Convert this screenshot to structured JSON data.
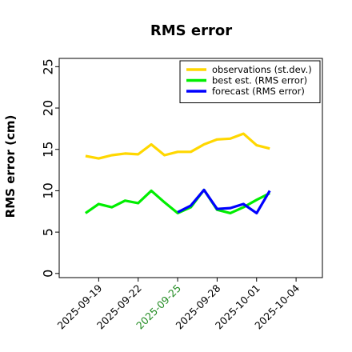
{
  "chart_data": {
    "type": "line",
    "title": "RMS error",
    "xlabel": "",
    "ylabel": "RMS error (cm)",
    "ylim": [
      -0.5,
      26
    ],
    "yticks": [
      0,
      5,
      10,
      15,
      20,
      25
    ],
    "xlim": [
      "2025-09-16",
      "2025-10-06"
    ],
    "xticks": [
      {
        "date": "2025-09-19",
        "label": "2025-09-19",
        "color": "#000000"
      },
      {
        "date": "2025-09-22",
        "label": "2025-09-22",
        "color": "#000000"
      },
      {
        "date": "2025-09-25",
        "label": "2025-09-25",
        "color": "#228B22"
      },
      {
        "date": "2025-09-28",
        "label": "2025-09-28",
        "color": "#000000"
      },
      {
        "date": "2025-10-01",
        "label": "2025-10-01",
        "color": "#000000"
      },
      {
        "date": "2025-10-04",
        "label": "2025-10-04",
        "color": "#000000"
      }
    ],
    "grid": false,
    "legend_position": "top-right",
    "series": [
      {
        "name": "observations (st.dev.)",
        "color": "#FFD700",
        "x": [
          "2025-09-18",
          "2025-09-19",
          "2025-09-20",
          "2025-09-21",
          "2025-09-22",
          "2025-09-23",
          "2025-09-24",
          "2025-09-25",
          "2025-09-26",
          "2025-09-27",
          "2025-09-28",
          "2025-09-29",
          "2025-09-30",
          "2025-10-01",
          "2025-10-02"
        ],
        "y": [
          14.2,
          13.9,
          14.3,
          14.5,
          14.4,
          15.6,
          14.3,
          14.7,
          14.7,
          15.6,
          16.2,
          16.3,
          16.9,
          15.5,
          15.1
        ]
      },
      {
        "name": "best est. (RMS error)",
        "color": "#00EE00",
        "x": [
          "2025-09-18",
          "2025-09-19",
          "2025-09-20",
          "2025-09-21",
          "2025-09-22",
          "2025-09-23",
          "2025-09-24",
          "2025-09-25",
          "2025-09-26",
          "2025-09-27",
          "2025-09-28",
          "2025-09-29",
          "2025-09-30",
          "2025-10-01",
          "2025-10-02"
        ],
        "y": [
          7.3,
          8.4,
          8.0,
          8.8,
          8.5,
          10.0,
          8.6,
          7.3,
          8.0,
          10.1,
          7.7,
          7.3,
          8.0,
          8.9,
          9.7
        ]
      },
      {
        "name": "forecast (RMS error)",
        "color": "#0000FF",
        "x": [
          "2025-09-25",
          "2025-09-26",
          "2025-09-27",
          "2025-09-28",
          "2025-09-29",
          "2025-09-30",
          "2025-10-01",
          "2025-10-02"
        ],
        "y": [
          7.4,
          8.2,
          10.1,
          7.8,
          7.9,
          8.4,
          7.3,
          10.0
        ]
      }
    ]
  }
}
